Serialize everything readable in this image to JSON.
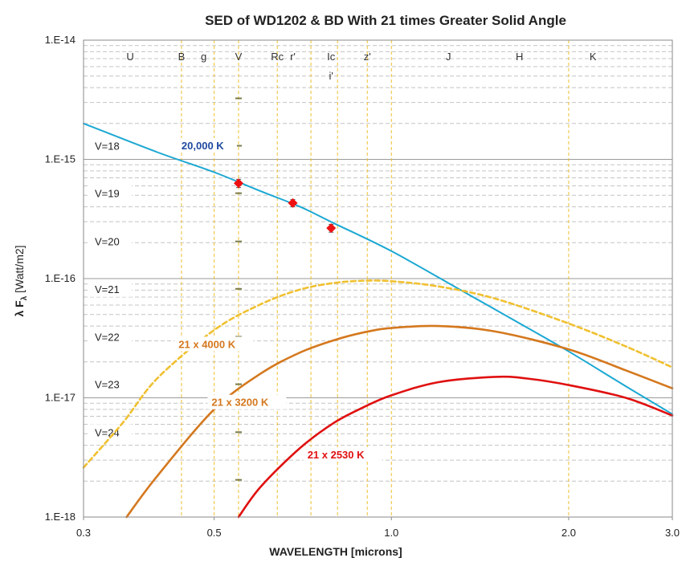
{
  "chart_data": {
    "type": "line",
    "title": "SED of WD1202 & BD With 21 times Greater Solid Angle",
    "xlabel": "WAVELENGTH [microns]",
    "ylabel_main": "λ F",
    "ylabel_sub": "λ",
    "ylabel_units": " [Watt/m2]",
    "x_scale": "log",
    "y_scale": "log",
    "xlim": [
      0.3,
      3.0
    ],
    "ylim": [
      1e-18,
      1e-14
    ],
    "x_ticks": [
      {
        "value": 0.3,
        "label": "0.3"
      },
      {
        "value": 0.5,
        "label": "0.5"
      },
      {
        "value": 1.0,
        "label": "1.0"
      },
      {
        "value": 2.0,
        "label": "2.0"
      },
      {
        "value": 3.0,
        "label": "3.0"
      }
    ],
    "y_ticks": [
      {
        "value": 1e-14,
        "label": "1.E-14"
      },
      {
        "value": 1e-15,
        "label": "1.E-15"
      },
      {
        "value": 1e-16,
        "label": "1.E-16"
      },
      {
        "value": 1e-17,
        "label": "1.E-17"
      },
      {
        "value": 1e-18,
        "label": "1.E-18"
      }
    ],
    "minor_gridlines": true,
    "bands": [
      {
        "label": "U",
        "x": 0.36,
        "line": false
      },
      {
        "label": "B",
        "x": 0.44,
        "line": true
      },
      {
        "label": "g",
        "x": 0.48,
        "line": true
      },
      {
        "label": "V",
        "x": 0.55,
        "line": true
      },
      {
        "label": "Rc",
        "x": 0.64,
        "line": true
      },
      {
        "label": "r'",
        "x": 0.68,
        "line": true
      },
      {
        "label": "Ic",
        "x": 0.79,
        "line": true
      },
      {
        "label": "i'",
        "x": 0.79,
        "line": false,
        "row": 2
      },
      {
        "label": "z'",
        "x": 0.91,
        "line": true
      },
      {
        "label": "J",
        "x": 1.25,
        "line": true
      },
      {
        "label": "H",
        "x": 1.65,
        "line": true
      },
      {
        "label": "K",
        "x": 2.2,
        "line": false
      }
    ],
    "band_lines": [
      0.44,
      0.5,
      0.55,
      0.64,
      0.73,
      0.81,
      0.91,
      1.0,
      2.0
    ],
    "v_mag_labels": [
      {
        "label": "V=18",
        "y": 1.3e-15
      },
      {
        "label": "V=19",
        "y": 5.2e-16
      },
      {
        "label": "V=20",
        "y": 2.05e-16
      },
      {
        "label": "V=21",
        "y": 8.2e-17
      },
      {
        "label": "V=22",
        "y": 3.25e-17
      },
      {
        "label": "V=23",
        "y": 1.3e-17
      },
      {
        "label": "V=24",
        "y": 5.15e-18
      }
    ],
    "v_ticks_x": 0.55,
    "v_ticks_y": [
      3.25e-15,
      1.3e-15,
      5.2e-16,
      2.05e-16,
      8.2e-17,
      3.25e-17,
      1.3e-17,
      5.15e-18,
      2.05e-18
    ],
    "series": [
      {
        "name": "20,000 K",
        "color": "#1ba8d3",
        "dash": false,
        "x": [
          0.3,
          0.4,
          0.5,
          0.6,
          0.7,
          0.8,
          1.0,
          1.3,
          1.6,
          2.0,
          2.5,
          3.0
        ],
        "y": [
          2e-15,
          1.15e-15,
          7.8e-16,
          5.4e-16,
          4e-16,
          2.9e-16,
          1.7e-16,
          8.2e-17,
          4.6e-17,
          2.45e-17,
          1.25e-17,
          7.3e-18
        ]
      },
      {
        "name": "21 x 4000 K",
        "color": "#f0c030",
        "dash": true,
        "x": [
          0.3,
          0.35,
          0.4,
          0.5,
          0.6,
          0.7,
          0.8,
          0.9,
          1.0,
          1.2,
          1.5,
          2.0,
          2.5,
          3.0
        ],
        "y": [
          2.6e-18,
          6.2e-18,
          1.45e-17,
          3.7e-17,
          6.1e-17,
          8.1e-17,
          9.2e-17,
          9.6e-17,
          9.5e-17,
          8.6e-17,
          6.8e-17,
          4.2e-17,
          2.7e-17,
          1.8e-17
        ]
      },
      {
        "name": "21 x 3200 K",
        "color": "#d4781e",
        "dash": false,
        "x": [
          0.355,
          0.4,
          0.5,
          0.6,
          0.7,
          0.8,
          0.9,
          1.0,
          1.2,
          1.5,
          2.0,
          2.5,
          3.0
        ],
        "y": [
          1e-18,
          2.2e-18,
          8e-18,
          1.6e-17,
          2.4e-17,
          3.05e-17,
          3.55e-17,
          3.85e-17,
          4e-17,
          3.6e-17,
          2.55e-17,
          1.7e-17,
          1.2e-17
        ]
      },
      {
        "name": "21 x 2530 K",
        "color": "#e01010",
        "dash": false,
        "x": [
          0.55,
          0.6,
          0.7,
          0.8,
          0.9,
          1.0,
          1.2,
          1.5,
          1.7,
          2.0,
          2.5,
          3.0
        ],
        "y": [
          1e-18,
          1.8e-18,
          3.8e-18,
          6.2e-18,
          8.4e-18,
          1.05e-17,
          1.35e-17,
          1.5e-17,
          1.45e-17,
          1.28e-17,
          1e-17,
          7.1e-18
        ]
      }
    ],
    "data_points": [
      {
        "x": 0.55,
        "y": 6.3e-16,
        "err": [
          5.8e-16,
          6.8e-16
        ]
      },
      {
        "x": 0.68,
        "y": 4.3e-16,
        "err": [
          4e-16,
          4.6e-16
        ]
      },
      {
        "x": 0.79,
        "y": 2.65e-16,
        "err": [
          2.45e-16,
          2.85e-16
        ]
      }
    ],
    "series_labels": [
      {
        "text": "20,000 K",
        "color": "#1f4aa0",
        "x": 0.44,
        "y": 1.25e-15
      },
      {
        "text": "21 x 4000 K",
        "color": "#d4781e",
        "x": 0.435,
        "y": 2.7e-17
      },
      {
        "text": "21 x 3200 K",
        "color": "#d4781e",
        "x": 0.495,
        "y": 8.8e-18
      },
      {
        "text": "21 x 2530 K",
        "color": "#e01010",
        "x": 0.72,
        "y": 3.2e-18
      }
    ]
  }
}
